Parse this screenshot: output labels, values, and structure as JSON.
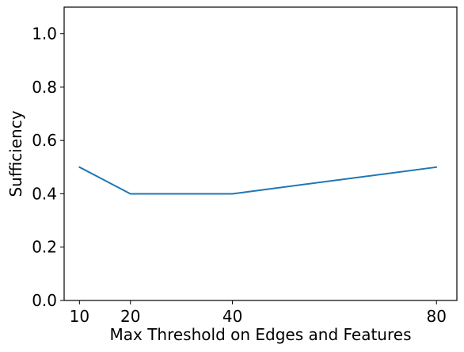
{
  "chart_data": {
    "type": "line",
    "title": "",
    "xlabel": "Max Threshold on Edges and Features",
    "ylabel": "Sufficiency",
    "x": [
      10,
      20,
      40,
      80
    ],
    "xticks": [
      "10",
      "20",
      "40",
      "80"
    ],
    "yticks": [
      "0.0",
      "0.2",
      "0.4",
      "0.6",
      "0.8",
      "1.0"
    ],
    "xlim": [
      7,
      84
    ],
    "ylim": [
      0.0,
      1.1
    ],
    "grid": false,
    "series": [
      {
        "values": [
          0.5,
          0.4,
          0.4,
          0.5
        ],
        "color": "#1f77b4"
      }
    ]
  }
}
